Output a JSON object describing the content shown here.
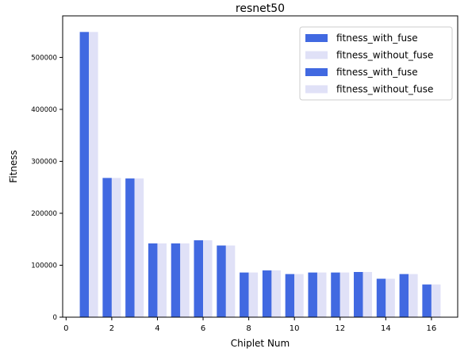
{
  "chart_data": {
    "type": "bar",
    "title": "resnet50",
    "xlabel": "Chiplet Num",
    "ylabel": "Fitness",
    "xlim": [
      -0.15,
      17.15
    ],
    "ylim": [
      0,
      580000
    ],
    "xticks": [
      0,
      2,
      4,
      6,
      8,
      10,
      12,
      14,
      16
    ],
    "yticks": [
      0,
      100000,
      200000,
      300000,
      400000,
      500000
    ],
    "grid": false,
    "legend_position": "top-right",
    "bar_width": 0.4,
    "x": [
      1,
      2,
      3,
      4,
      5,
      6,
      7,
      8,
      9,
      10,
      11,
      12,
      13,
      14,
      15,
      16
    ],
    "series": [
      {
        "name": "fitness_with_fuse",
        "color": "#4169e1",
        "offset": -0.2,
        "values": [
          549000,
          268000,
          267000,
          142000,
          142000,
          148000,
          138000,
          86000,
          90000,
          83000,
          86000,
          86000,
          87000,
          74000,
          83000,
          63000
        ]
      },
      {
        "name": "fitness_without_fuse",
        "color": "#e0e1f7",
        "offset": 0.2,
        "values": [
          549000,
          268000,
          267000,
          142000,
          142000,
          148000,
          138000,
          86000,
          90000,
          83000,
          86000,
          86000,
          87000,
          74000,
          83000,
          63000
        ]
      }
    ],
    "legend": [
      {
        "label": "fitness_with_fuse",
        "color": "#4169e1"
      },
      {
        "label": "fitness_without_fuse",
        "color": "#e0e1f7"
      },
      {
        "label": "fitness_with_fuse",
        "color": "#4169e1"
      },
      {
        "label": "fitness_without_fuse",
        "color": "#e0e1f7"
      }
    ]
  }
}
